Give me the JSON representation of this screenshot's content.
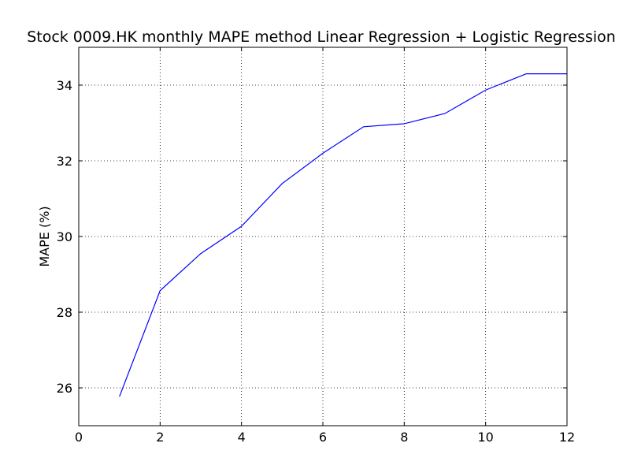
{
  "chart_data": {
    "type": "line",
    "title": "Stock 0009.HK monthly MAPE method Linear Regression + Logistic Regression",
    "xlabel": "",
    "ylabel": "MAPE (%)",
    "xlim": [
      0,
      12
    ],
    "ylim": [
      25,
      35
    ],
    "xticks": [
      0,
      2,
      4,
      6,
      8,
      10,
      12
    ],
    "yticks": [
      26,
      28,
      30,
      32,
      34
    ],
    "grid": true,
    "legend": "none",
    "series": [
      {
        "color": "#0000ff",
        "x": [
          1,
          2,
          3,
          4,
          5,
          6,
          7,
          8,
          9,
          10,
          11,
          12
        ],
        "y": [
          25.77,
          28.57,
          29.55,
          30.27,
          31.4,
          32.2,
          32.9,
          32.98,
          33.25,
          33.87,
          34.3,
          34.3
        ]
      }
    ]
  }
}
